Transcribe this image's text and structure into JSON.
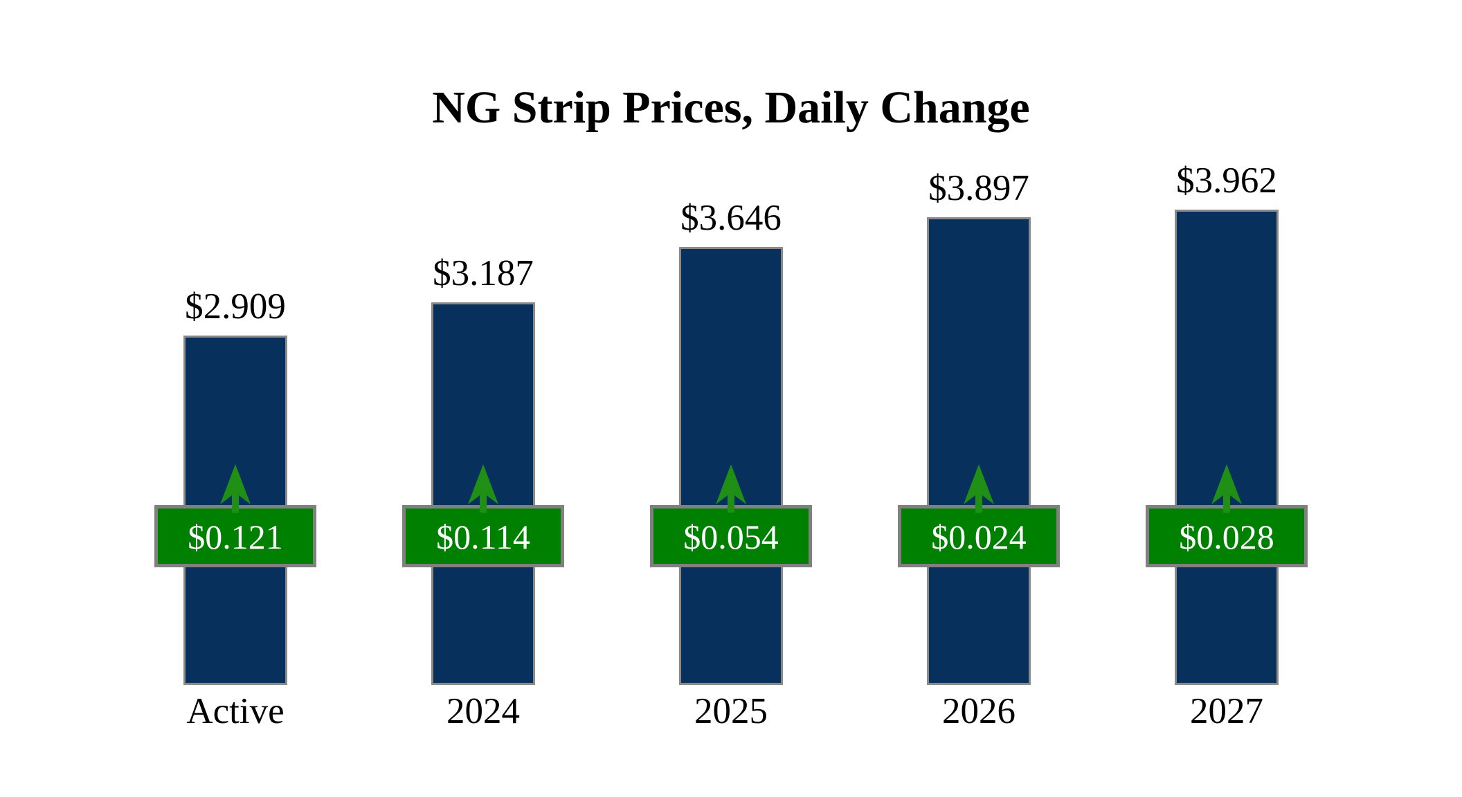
{
  "title": "NG Strip Prices, Daily Change",
  "chart_data": {
    "type": "bar",
    "title": "NG Strip Prices, Daily Change",
    "categories": [
      "Active",
      "2024",
      "2025",
      "2026",
      "2027"
    ],
    "series": [
      {
        "name": "strip_price",
        "values": [
          2.909,
          3.187,
          3.646,
          3.897,
          3.962
        ],
        "labels": [
          "$2.909",
          "$3.187",
          "$3.646",
          "$3.897",
          "$3.962"
        ]
      },
      {
        "name": "daily_change",
        "values": [
          0.121,
          0.114,
          0.054,
          0.024,
          0.028
        ],
        "labels": [
          "$0.121",
          "$0.114",
          "$0.054",
          "$0.024",
          "$0.028"
        ],
        "direction": "up"
      }
    ],
    "ylim": [
      0,
      4.2
    ],
    "grid": false,
    "legend": false,
    "axis_labels_visible": false,
    "annotation": "green up arrows mark positive daily change on every contract strip"
  },
  "colors": {
    "background": "#ffffff",
    "bar_fill": "#07305c",
    "bar_border": "#8a8a8a",
    "badge_fill": "#008000",
    "badge_border": "#808080",
    "badge_text": "#ffffff",
    "arrow": "#1f9015",
    "text": "#000000"
  },
  "icons": {
    "up_arrow": "arrow-up"
  }
}
